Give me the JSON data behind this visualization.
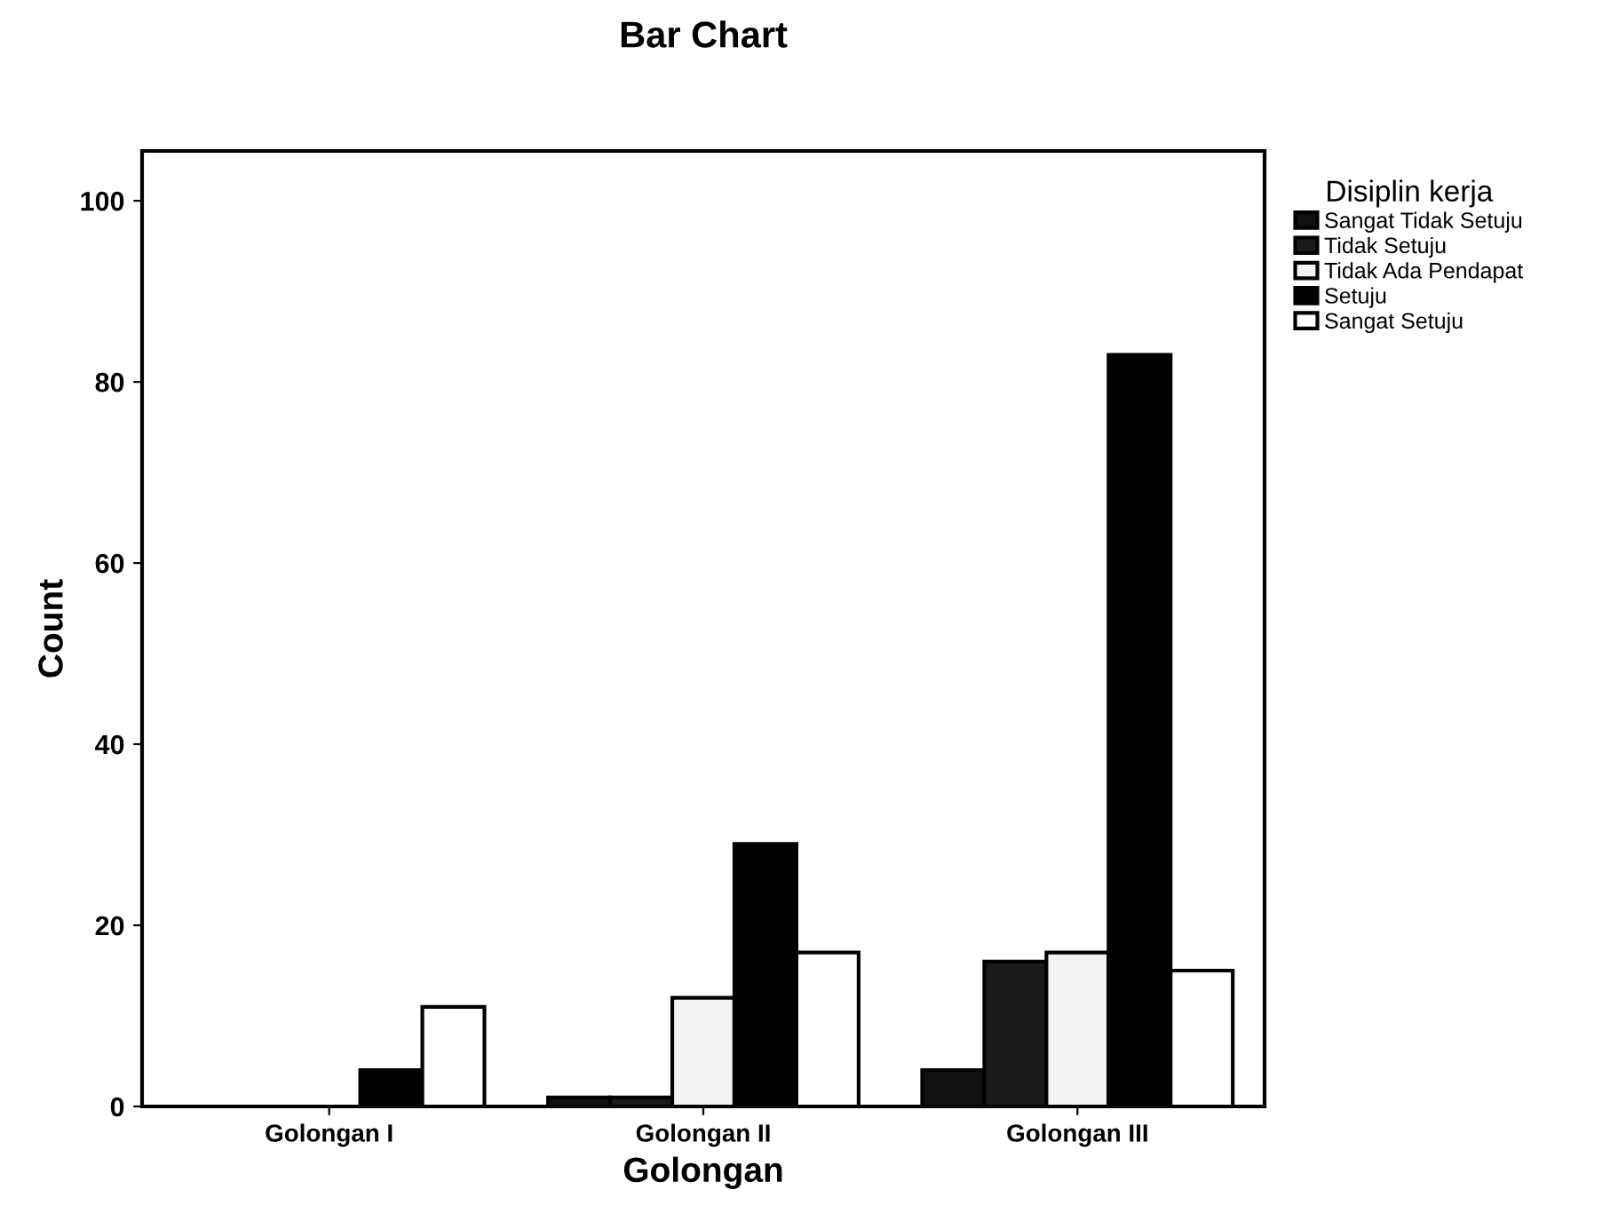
{
  "chart_data": {
    "type": "bar",
    "title": "Bar Chart",
    "xlabel": "Golongan",
    "ylabel": "Count",
    "legend_title": "Disiplin kerja",
    "legend": "top right",
    "grid": false,
    "categories": [
      "Golongan I",
      "Golongan II",
      "Golongan III"
    ],
    "ylim": [
      0,
      105.5
    ],
    "yticks": [
      0,
      20,
      40,
      60,
      80,
      100
    ],
    "series": [
      {
        "name": "Sangat Tidak Setuju",
        "color": "#111111",
        "values": [
          null,
          1,
          4
        ]
      },
      {
        "name": "Tidak Setuju",
        "color": "#1a1a1a",
        "values": [
          null,
          1,
          16
        ]
      },
      {
        "name": "Tidak Ada Pendapat",
        "color": "#f2f2f2",
        "values": [
          null,
          12,
          17
        ]
      },
      {
        "name": "Setuju",
        "color": "#000000",
        "values": [
          4,
          29,
          83
        ]
      },
      {
        "name": "Sangat Setuju",
        "color": "#ffffff",
        "values": [
          11,
          17,
          15
        ]
      }
    ]
  }
}
